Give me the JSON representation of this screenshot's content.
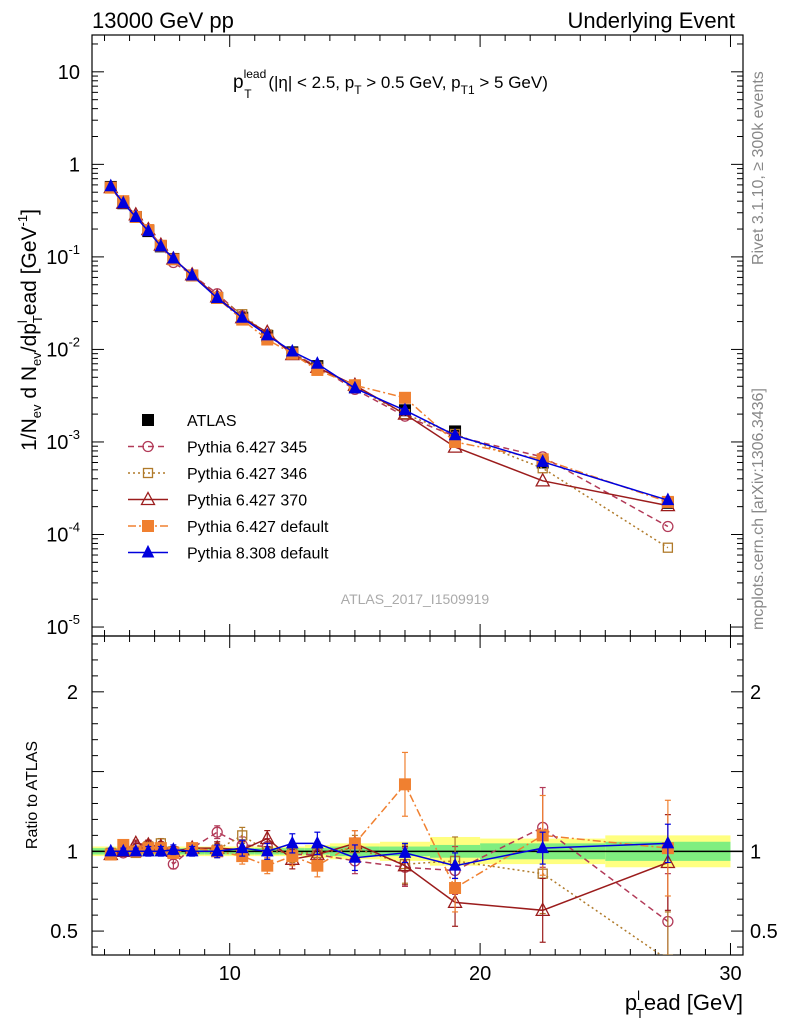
{
  "header": {
    "left": "13000 GeV pp",
    "right": "Underlying Event"
  },
  "side": {
    "rivet": "Rivet 3.1.10, ≥ 300k events",
    "mcplots": "mcplots.cern.ch [arXiv:1306.3436]"
  },
  "watermark": "ATLAS_2017_I1509919",
  "annotation": {
    "p": "p",
    "sup": "lead",
    "sub": "T",
    "rest1": " (|η| < 2.5, p",
    "sub2": "T",
    "rest2": " > 0.5 GeV, p",
    "sub3": "T1",
    "rest3": " > 5 GeV)"
  },
  "ylabel_top": {
    "a": "1/N",
    "a_sub": "ev",
    "b": " d N",
    "b_sub": "ev",
    "c": "/dp",
    "c_sub": "T",
    "c_sup": "l",
    "d": "ead [GeV",
    "d_sup": "-1",
    "e": "]"
  },
  "ylabel_bottom": "Ratio to ATLAS",
  "xlabel": {
    "p": "p",
    "sub": "T",
    "sup": "l",
    "rest": "ead [GeV]"
  },
  "chart_data": [
    {
      "type": "line",
      "panel": "main",
      "yscale": "log",
      "xlim": [
        4.5,
        30.5
      ],
      "ylim": [
        8e-06,
        25
      ],
      "x_ticks": [
        10,
        20,
        30
      ],
      "y_ticks": [
        {
          "value": 10,
          "base": "10",
          "exp": ""
        },
        {
          "value": 1,
          "base": "1",
          "exp": ""
        },
        {
          "value": 0.1,
          "base": "10",
          "exp": "-1"
        },
        {
          "value": 0.01,
          "base": "10",
          "exp": "-2"
        },
        {
          "value": 0.001,
          "base": "10",
          "exp": "-3"
        },
        {
          "value": 0.0001,
          "base": "10",
          "exp": "-4"
        },
        {
          "value": 1e-05,
          "base": "10",
          "exp": "-5"
        }
      ],
      "x": [
        5.25,
        5.75,
        6.25,
        6.75,
        7.25,
        7.75,
        8.5,
        9.5,
        10.5,
        11.5,
        12.5,
        13.5,
        15,
        17,
        19,
        22.5,
        27.5
      ],
      "series": [
        {
          "name": "ATLAS",
          "color": "#000000",
          "marker": "square-filled",
          "line": "none",
          "values": [
            0.57,
            0.38,
            0.27,
            0.19,
            0.13,
            0.095,
            0.063,
            0.036,
            0.022,
            0.014,
            0.0093,
            0.0066,
            0.0039,
            0.0022,
            0.0013,
            0.0006,
            0.00022
          ]
        },
        {
          "name": "Pythia 6.427 345",
          "color": "#b23a58",
          "marker": "circle-open",
          "line": "dashed",
          "values": [
            0.56,
            0.38,
            0.275,
            0.197,
            0.132,
            0.087,
            0.064,
            0.04,
            0.023,
            0.0144,
            0.0091,
            0.0065,
            0.0037,
            0.0019,
            0.00115,
            0.00069,
            0.000122
          ]
        },
        {
          "name": "Pythia 6.427 346",
          "color": "#b07a2a",
          "marker": "square-open",
          "line": "dotted",
          "values": [
            0.56,
            0.39,
            0.27,
            0.195,
            0.134,
            0.095,
            0.064,
            0.037,
            0.024,
            0.0145,
            0.0092,
            0.0065,
            0.0039,
            0.002,
            0.00122,
            0.00052,
            7.2e-05
          ]
        },
        {
          "name": "Pythia 6.427 370",
          "color": "#9b1c1c",
          "marker": "triangle-open",
          "line": "solid",
          "values": [
            0.56,
            0.38,
            0.285,
            0.197,
            0.134,
            0.095,
            0.064,
            0.037,
            0.022,
            0.0153,
            0.0088,
            0.0064,
            0.0041,
            0.002,
            0.00088,
            0.00038,
            0.000205
          ]
        },
        {
          "name": "Pythia 6.427 default",
          "color": "#f08030",
          "marker": "square-filled",
          "line": "dashdot",
          "values": [
            0.56,
            0.4,
            0.27,
            0.195,
            0.132,
            0.094,
            0.063,
            0.036,
            0.021,
            0.0128,
            0.009,
            0.006,
            0.0041,
            0.003,
            0.001,
            0.00065,
            0.000225
          ]
        },
        {
          "name": "Pythia 8.308 default",
          "color": "#0000dd",
          "marker": "triangle-filled",
          "line": "solid",
          "values": [
            0.58,
            0.38,
            0.27,
            0.19,
            0.13,
            0.096,
            0.063,
            0.036,
            0.022,
            0.0142,
            0.0095,
            0.007,
            0.0038,
            0.0022,
            0.00118,
            0.00061,
            0.000235
          ]
        }
      ],
      "legend_position": "lower-left"
    },
    {
      "type": "line",
      "panel": "ratio",
      "ylabel": "Ratio to ATLAS",
      "xlim": [
        4.5,
        30.5
      ],
      "ylim": [
        0.35,
        2.35
      ],
      "x_ticks": [
        10,
        20,
        30
      ],
      "y_ticks": [
        0.5,
        1,
        2
      ],
      "x": [
        5.25,
        5.75,
        6.25,
        6.75,
        7.25,
        7.75,
        8.5,
        9.5,
        10.5,
        11.5,
        12.5,
        13.5,
        15,
        17,
        19,
        22.5,
        27.5
      ],
      "bands": {
        "bin_edges": [
          4.5,
          5.5,
          6.5,
          7.5,
          9,
          10,
          11,
          12,
          13,
          14,
          16,
          18,
          20,
          25,
          30
        ],
        "green": [
          0.02,
          0.02,
          0.02,
          0.02,
          0.02,
          0.02,
          0.02,
          0.02,
          0.02,
          0.03,
          0.03,
          0.04,
          0.05,
          0.06
        ],
        "yellow": [
          0.03,
          0.03,
          0.03,
          0.03,
          0.03,
          0.03,
          0.03,
          0.03,
          0.04,
          0.05,
          0.06,
          0.09,
          0.08,
          0.1
        ]
      },
      "series": [
        {
          "name": "ATLAS",
          "color": "#000000",
          "marker": "none",
          "line": "solid",
          "values": [
            1,
            1,
            1,
            1,
            1,
            1,
            1,
            1,
            1,
            1,
            1,
            1,
            1,
            1,
            1,
            1,
            1
          ]
        },
        {
          "name": "Pythia 6.427 345",
          "color": "#b23a58",
          "marker": "circle-open",
          "line": "dashed",
          "values": [
            0.98,
            0.99,
            1.03,
            1.04,
            1.02,
            0.92,
            1.02,
            1.12,
            1.04,
            1.03,
            0.98,
            0.98,
            0.94,
            0.9,
            0.88,
            1.15,
            0.56
          ],
          "errors": [
            0.02,
            0.02,
            0.02,
            0.03,
            0.03,
            0.03,
            0.03,
            0.04,
            0.05,
            0.05,
            0.06,
            0.07,
            0.08,
            0.12,
            0.15,
            0.25,
            0.3
          ]
        },
        {
          "name": "Pythia 6.427 346",
          "color": "#b07a2a",
          "marker": "square-open",
          "line": "dotted",
          "values": [
            0.99,
            1.02,
            0.99,
            1.03,
            1.05,
            1.0,
            1.02,
            1.01,
            1.1,
            1.0,
            0.99,
            0.99,
            1.02,
            0.92,
            0.94,
            0.86,
            0.32
          ],
          "errors": [
            0.02,
            0.02,
            0.02,
            0.03,
            0.03,
            0.03,
            0.03,
            0.04,
            0.05,
            0.05,
            0.06,
            0.07,
            0.08,
            0.12,
            0.15,
            0.25,
            0.3
          ]
        },
        {
          "name": "Pythia 6.427 370",
          "color": "#9b1c1c",
          "marker": "triangle-open",
          "line": "solid",
          "values": [
            0.98,
            1.0,
            1.05,
            1.04,
            1.03,
            1.0,
            1.02,
            1.02,
            1.01,
            1.08,
            0.95,
            0.98,
            1.05,
            0.91,
            0.68,
            0.63,
            0.93
          ],
          "errors": [
            0.02,
            0.02,
            0.02,
            0.03,
            0.03,
            0.03,
            0.03,
            0.04,
            0.05,
            0.05,
            0.06,
            0.07,
            0.08,
            0.12,
            0.15,
            0.2,
            0.3
          ]
        },
        {
          "name": "Pythia 6.427 default",
          "color": "#f08030",
          "marker": "square-filled",
          "line": "dashdot",
          "values": [
            0.98,
            1.04,
            1.0,
            1.02,
            1.02,
            0.99,
            1.02,
            1.0,
            0.97,
            0.91,
            0.97,
            0.91,
            1.05,
            1.42,
            0.77,
            1.1,
            1.02
          ],
          "errors": [
            0.02,
            0.02,
            0.02,
            0.03,
            0.03,
            0.03,
            0.03,
            0.04,
            0.05,
            0.05,
            0.06,
            0.07,
            0.08,
            0.2,
            0.15,
            0.25,
            0.3
          ]
        },
        {
          "name": "Pythia 8.308 default",
          "color": "#0000dd",
          "marker": "triangle-filled",
          "line": "solid",
          "values": [
            1.0,
            1.0,
            1.0,
            1.0,
            1.0,
            1.01,
            1.0,
            1.0,
            1.02,
            1.0,
            1.05,
            1.05,
            0.96,
            0.99,
            0.91,
            1.02,
            1.05
          ],
          "errors": [
            0.02,
            0.02,
            0.02,
            0.03,
            0.03,
            0.03,
            0.03,
            0.04,
            0.05,
            0.05,
            0.06,
            0.07,
            0.08,
            0.06,
            0.08,
            0.1,
            0.12
          ]
        }
      ]
    }
  ]
}
